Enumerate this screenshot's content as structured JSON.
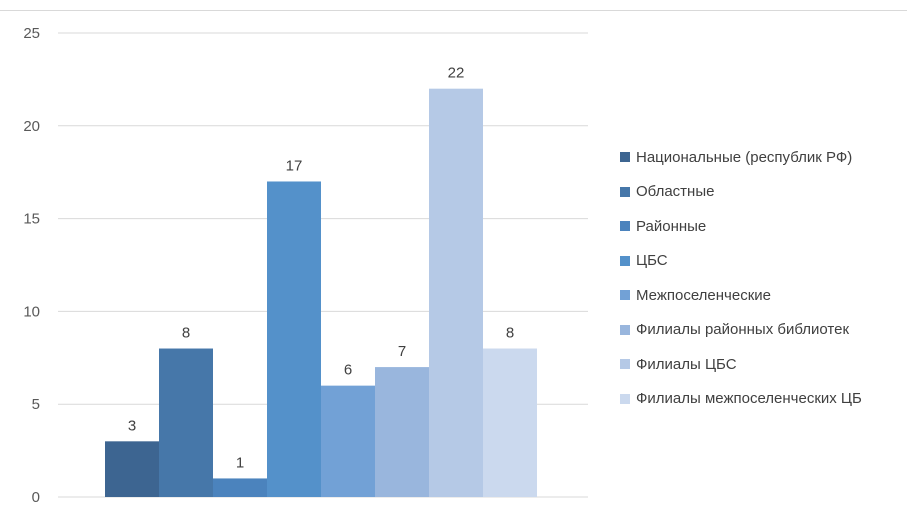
{
  "chart_data": {
    "type": "bar",
    "title": "",
    "xlabel": "",
    "ylabel": "",
    "ylim": [
      0,
      25
    ],
    "yticks": [
      0,
      5,
      10,
      15,
      20,
      25
    ],
    "grid": true,
    "legend_position": "right",
    "series": [
      {
        "name": "Национальные (республик РФ)",
        "value": 3,
        "color": "#3d6591"
      },
      {
        "name": "Областные",
        "value": 8,
        "color": "#4677a9"
      },
      {
        "name": "Районные",
        "value": 1,
        "color": "#4b83bd"
      },
      {
        "name": "ЦБС",
        "value": 17,
        "color": "#5491ca"
      },
      {
        "name": "Межпоселенческие",
        "value": 6,
        "color": "#72a1d6"
      },
      {
        "name": "Филиалы районных библиотек",
        "value": 7,
        "color": "#99b6dd"
      },
      {
        "name": "Филиалы ЦБС",
        "value": 22,
        "color": "#b5c9e6"
      },
      {
        "name": "Филиалы межпоселенческих ЦБ",
        "value": 8,
        "color": "#cbd9ee"
      }
    ]
  }
}
